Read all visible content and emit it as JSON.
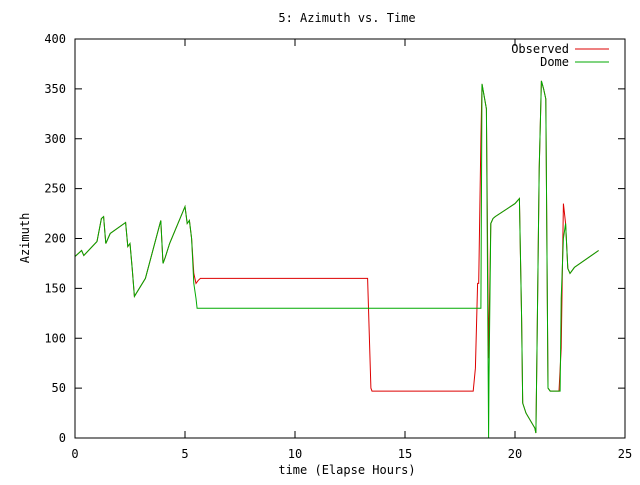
{
  "chart_data": {
    "type": "line",
    "title": "5: Azimuth vs. Time",
    "xlabel": "time (Elapse Hours)",
    "ylabel": "Azimuth",
    "xlim": [
      0,
      25
    ],
    "ylim": [
      0,
      400
    ],
    "xticks": [
      0,
      5,
      10,
      15,
      20,
      25
    ],
    "yticks": [
      0,
      50,
      100,
      150,
      200,
      250,
      300,
      350,
      400
    ],
    "grid": false,
    "legend_position": "top-right",
    "series": [
      {
        "name": "Observed",
        "color": "#dd0000",
        "x": [
          0,
          0.2,
          0.3,
          0.4,
          1.0,
          1.2,
          1.3,
          1.4,
          1.6,
          2.3,
          2.4,
          2.5,
          2.6,
          2.7,
          3.2,
          3.9,
          4.0,
          4.1,
          4.3,
          5.0,
          5.1,
          5.2,
          5.3,
          5.4,
          5.5,
          5.6,
          5.7,
          13.3,
          13.45,
          13.5,
          18.1,
          18.2,
          18.3,
          18.35,
          18.45,
          18.5,
          18.7,
          18.8,
          18.9,
          19.0,
          19.1,
          20.0,
          20.2,
          20.3,
          20.35,
          20.5,
          20.9,
          20.95,
          21.0,
          21.1,
          21.2,
          21.3,
          21.4,
          21.5,
          21.6,
          22.0,
          22.1,
          22.2,
          22.3,
          22.4,
          22.5,
          22.6,
          22.7,
          23.8
        ],
        "y": [
          182,
          186,
          188,
          183,
          197,
          220,
          222,
          195,
          205,
          216,
          192,
          195,
          170,
          142,
          160,
          218,
          175,
          181,
          195,
          232,
          215,
          218,
          200,
          165,
          155,
          158,
          160,
          160,
          50,
          47,
          47,
          70,
          155,
          155,
          300,
          355,
          330,
          80,
          215,
          220,
          222,
          235,
          240,
          120,
          35,
          25,
          10,
          5,
          90,
          270,
          358,
          350,
          340,
          50,
          47,
          47,
          90,
          235,
          215,
          170,
          165,
          168,
          171,
          188
        ]
      },
      {
        "name": "Dome",
        "color": "#00aa00",
        "x": [
          0,
          0.2,
          0.3,
          0.4,
          1.0,
          1.2,
          1.3,
          1.4,
          1.6,
          2.3,
          2.4,
          2.5,
          2.6,
          2.7,
          3.2,
          3.9,
          4.0,
          4.1,
          4.3,
          5.0,
          5.1,
          5.2,
          5.3,
          5.4,
          5.5,
          5.55,
          18.45,
          18.5,
          18.7,
          18.8,
          18.82,
          18.9,
          19.0,
          19.1,
          20.0,
          20.2,
          20.3,
          20.35,
          20.5,
          20.9,
          20.95,
          21.0,
          21.1,
          21.2,
          21.3,
          21.4,
          21.5,
          21.6,
          22.0,
          22.05,
          22.1,
          22.2,
          22.3,
          22.4,
          22.5,
          22.6,
          22.7,
          23.8
        ],
        "y": [
          182,
          186,
          188,
          183,
          197,
          220,
          222,
          195,
          205,
          216,
          192,
          195,
          170,
          142,
          160,
          218,
          175,
          181,
          195,
          232,
          215,
          218,
          200,
          155,
          140,
          130,
          130,
          355,
          330,
          0,
          60,
          215,
          220,
          222,
          235,
          240,
          120,
          35,
          25,
          10,
          5,
          90,
          270,
          358,
          350,
          340,
          50,
          47,
          47,
          47,
          140,
          200,
          215,
          170,
          165,
          168,
          171,
          188
        ]
      }
    ]
  }
}
